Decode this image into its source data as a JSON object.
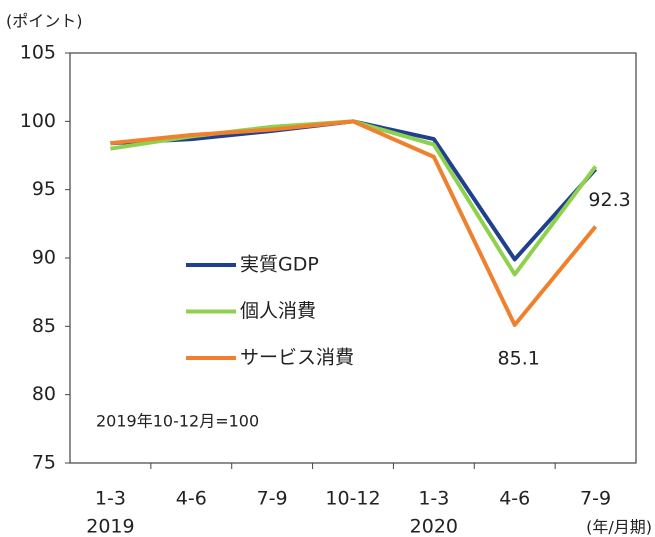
{
  "chart_data": {
    "type": "line",
    "y_unit_label": "(ポイント)",
    "x_unit_label": "(年/月期)",
    "annotation": "2019年10-12月=100",
    "categories": [
      "1-3",
      "4-6",
      "7-9",
      "10-12",
      "1-3",
      "4-6",
      "7-9"
    ],
    "years": [
      "2019",
      null,
      null,
      null,
      "2020",
      null,
      null
    ],
    "series": [
      {
        "name": "実質GDP",
        "color": "#1f3f8f",
        "values": [
          98.4,
          98.7,
          99.3,
          100,
          98.7,
          89.9,
          96.5
        ]
      },
      {
        "name": "個人消費",
        "color": "#8fd14f",
        "values": [
          98.0,
          98.9,
          99.6,
          100,
          98.3,
          88.8,
          96.7
        ]
      },
      {
        "name": "サービス消費",
        "color": "#f0802e",
        "values": [
          98.4,
          99.0,
          99.4,
          100,
          97.4,
          85.1,
          92.3
        ]
      }
    ],
    "labeled_points": [
      [
        2,
        5
      ],
      [
        2,
        6
      ]
    ],
    "ylim": [
      75,
      105
    ],
    "yticks": [
      75,
      80,
      85,
      90,
      95,
      100,
      105
    ],
    "grid": false,
    "legend": "center-left"
  }
}
